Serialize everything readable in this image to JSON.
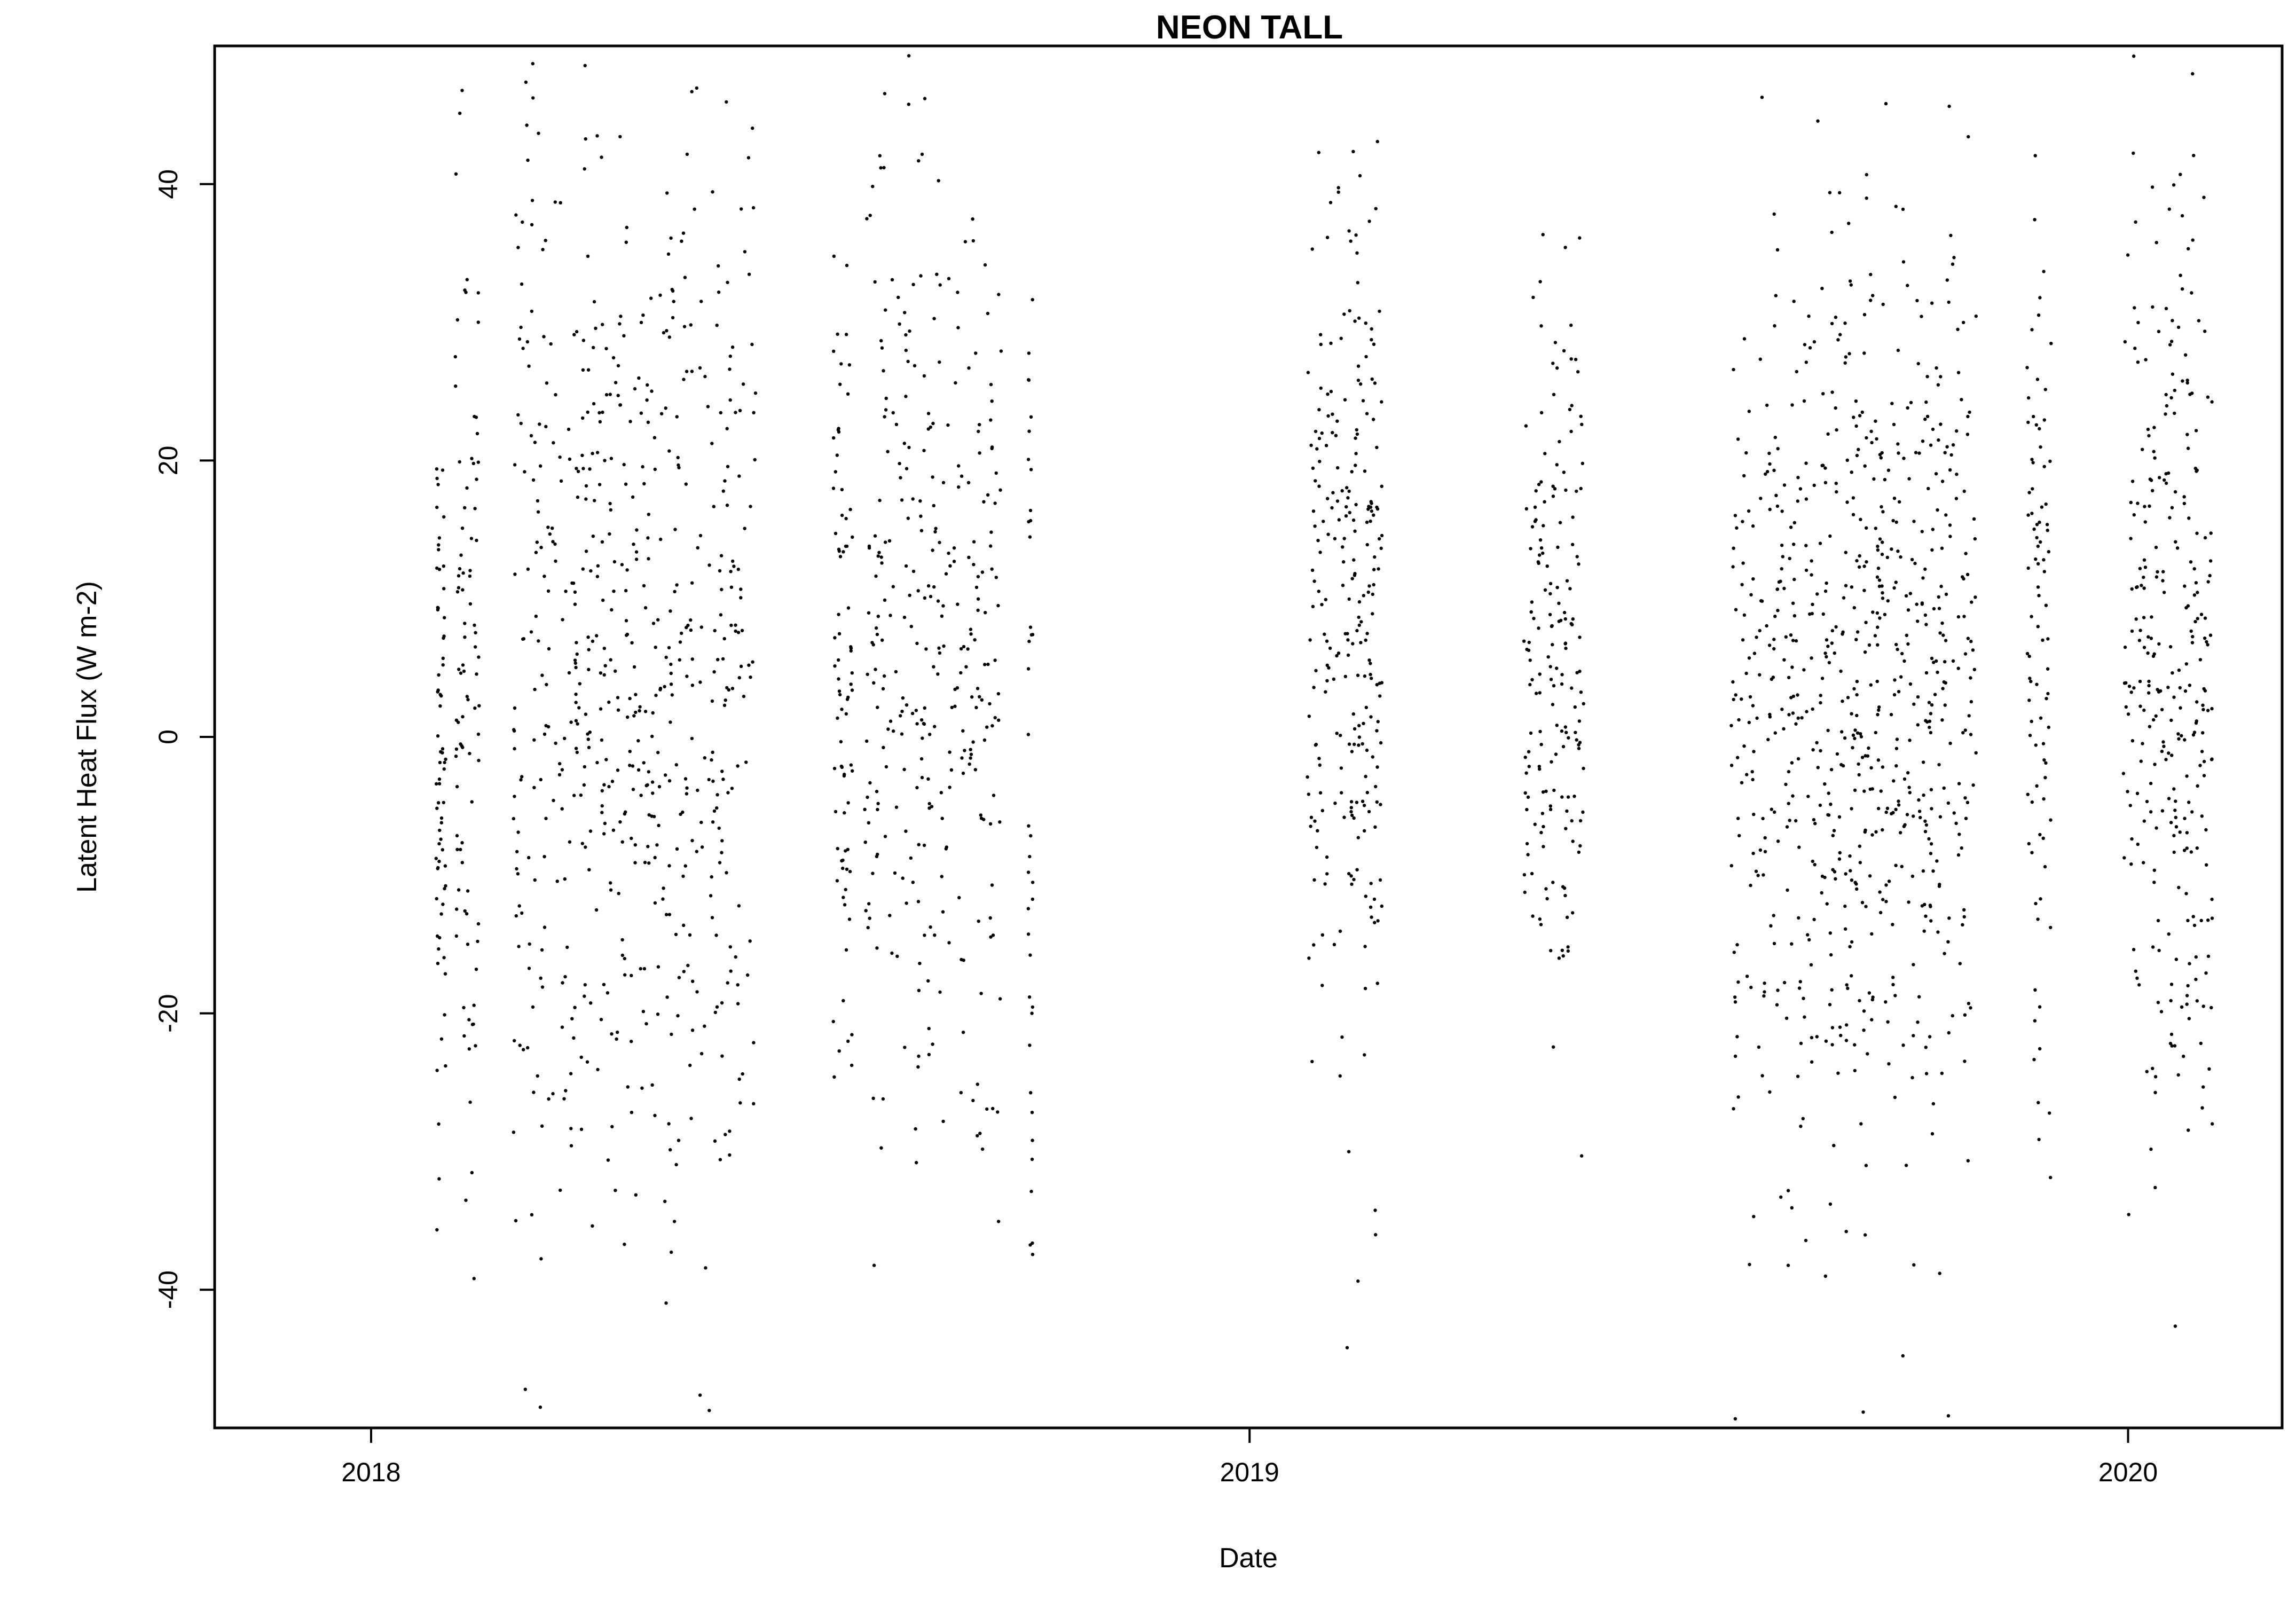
{
  "chart_data": {
    "type": "scatter",
    "title": "NEON TALL",
    "xlabel": "Date",
    "ylabel": "Latent Heat Flux (W m-2)",
    "xlim": [
      "2017-10-28",
      "2020-03-05"
    ],
    "ylim": [
      -50,
      50
    ],
    "x_ticks": [
      "2018",
      "2019",
      "2020"
    ],
    "y_ticks": [
      "-40",
      "-20",
      "0",
      "20",
      "40"
    ],
    "grid": false,
    "legend": "none",
    "point_color": "#000000",
    "series": [
      {
        "type": "half-hourly observations (sampled)",
        "clusters": [
          {
            "from": "2018-01-28",
            "to": "2018-02-01",
            "center": 1,
            "spread": 14,
            "n": 70
          },
          {
            "from": "2018-02-05",
            "to": "2018-02-15",
            "center": 5,
            "spread": 18,
            "n": 90
          },
          {
            "from": "2018-03-01",
            "to": "2018-04-20",
            "center": 5,
            "spread": 20,
            "n": 320
          },
          {
            "from": "2018-04-20",
            "to": "2018-06-10",
            "center": 3,
            "spread": 20,
            "n": 300
          },
          {
            "from": "2018-07-12",
            "to": "2018-07-20",
            "center": 2,
            "spread": 16,
            "n": 80
          },
          {
            "from": "2018-07-25",
            "to": "2018-08-28",
            "center": 8,
            "spread": 18,
            "n": 200
          },
          {
            "from": "2018-08-28",
            "to": "2018-09-20",
            "center": 6,
            "spread": 16,
            "n": 120
          },
          {
            "from": "2018-10-01",
            "to": "2018-10-03",
            "center": 0,
            "spread": 18,
            "n": 40
          },
          {
            "from": "2019-01-25",
            "to": "2019-02-25",
            "center": 8,
            "spread": 16,
            "n": 260
          },
          {
            "from": "2019-04-25",
            "to": "2019-05-20",
            "center": 5,
            "spread": 14,
            "n": 180
          },
          {
            "from": "2019-07-20",
            "to": "2019-08-25",
            "center": 2,
            "spread": 18,
            "n": 220
          },
          {
            "from": "2019-08-25",
            "to": "2019-10-05",
            "center": 4,
            "spread": 18,
            "n": 330
          },
          {
            "from": "2019-10-05",
            "to": "2019-10-30",
            "center": 4,
            "spread": 16,
            "n": 180
          },
          {
            "from": "2019-11-20",
            "to": "2019-11-30",
            "center": 8,
            "spread": 16,
            "n": 90
          },
          {
            "from": "2019-12-30",
            "to": "2020-02-05",
            "center": 5,
            "spread": 18,
            "n": 300
          }
        ]
      }
    ]
  }
}
